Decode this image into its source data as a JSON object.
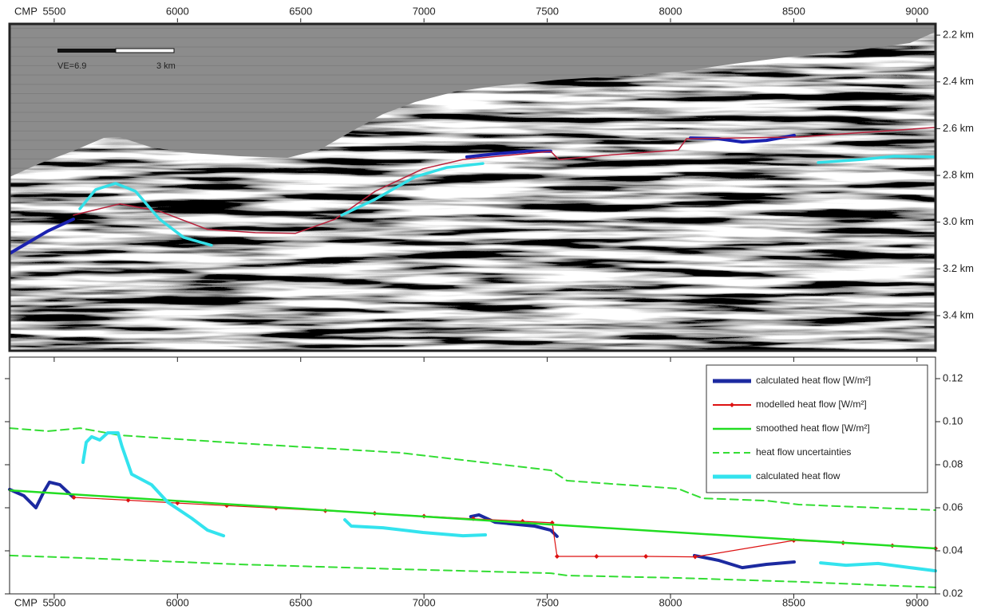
{
  "chart_data": [
    {
      "type": "line",
      "xlabel": "CMP",
      "xlim": [
        5319,
        9075
      ],
      "xticks": [
        5500,
        6000,
        6500,
        7000,
        7500,
        8000,
        8500,
        9000
      ],
      "ylim": [
        2.152,
        3.55
      ],
      "y_inverted": true,
      "yticks": [
        {
          "value": 2.2,
          "label": "2.2 km"
        },
        {
          "value": 2.4,
          "label": "2.4 km"
        },
        {
          "value": 2.6,
          "label": "2.6 km"
        },
        {
          "value": 2.8,
          "label": "2.8 km"
        },
        {
          "value": 3.0,
          "label": "3.0 km"
        },
        {
          "value": 3.2,
          "label": "3.2 km"
        },
        {
          "value": 3.4,
          "label": "3.4 km"
        }
      ],
      "scale_bar": {
        "ve": "VE=6.9",
        "length": "3 km"
      },
      "series": [
        {
          "color": "#1b22b0",
          "x": [
            5319,
            5474,
            5578,
            5900,
            7174,
            7288,
            7417,
            7514,
            7800,
            8081,
            8194,
            8291,
            8389,
            8502
          ],
          "values": [
            3.134,
            3.038,
            2.987,
            null,
            2.721,
            2.708,
            2.697,
            2.697,
            null,
            2.64,
            2.643,
            2.657,
            2.65,
            2.629
          ]
        },
        {
          "color": "#b8203a",
          "x": [
            5578,
            5766,
            5927,
            6122,
            6316,
            6478,
            6640,
            6802,
            6996,
            7158,
            7514,
            7547,
            7741,
            8032,
            8065,
            8518,
            9075
          ],
          "values": [
            2.97,
            2.922,
            2.953,
            3.031,
            3.045,
            3.048,
            2.987,
            2.868,
            2.772,
            2.732,
            2.697,
            2.732,
            2.714,
            2.691,
            2.643,
            2.636,
            2.595
          ]
        },
        {
          "color": "#33e0e8",
          "x": [
            5604,
            5668,
            5749,
            5830,
            5927,
            6025,
            6138,
            6400,
            6666,
            6802,
            6964,
            7093,
            7239,
            7900,
            8599,
            8777,
            8907,
            9075
          ],
          "values": [
            2.943,
            2.861,
            2.834,
            2.868,
            2.987,
            3.065,
            3.099,
            null,
            2.97,
            2.902,
            2.806,
            2.766,
            2.749,
            null,
            2.745,
            2.732,
            2.718,
            2.721
          ]
        }
      ]
    },
    {
      "type": "line",
      "xlabel": "CMP",
      "xlim": [
        5319,
        9075
      ],
      "xticks": [
        5500,
        6000,
        6500,
        7000,
        7500,
        8000,
        8500,
        9000
      ],
      "ylim": [
        0.02,
        0.13
      ],
      "yticks": [
        0.02,
        0.04,
        0.06,
        0.08,
        {
          "value": 0.1,
          "label": "0.10"
        },
        0.12
      ],
      "legend": "top-right",
      "series": [
        {
          "name": "calculated heat flow [W/m²]",
          "color": "#1c2aa0",
          "x": [
            5319,
            5377,
            5426,
            5458,
            5481,
            5523,
            5578,
            6500,
            7190,
            7223,
            7288,
            7449,
            7514,
            7540,
            7800,
            8097,
            8194,
            8291,
            8389,
            8502
          ],
          "values": [
            0.0685,
            0.0656,
            0.06,
            0.0674,
            0.0719,
            0.0707,
            0.0648,
            null,
            0.0559,
            0.0567,
            0.0533,
            0.0515,
            0.0496,
            0.0467,
            null,
            0.0378,
            0.0356,
            0.0322,
            0.0337,
            0.0348
          ]
        },
        {
          "name": "modelled heat flow [W/m²]",
          "color": "#dd1111",
          "marker": "diamond",
          "x": [
            5580,
            5800,
            6000,
            6200,
            6400,
            6600,
            6800,
            7000,
            7200,
            7400,
            7520,
            7540,
            7700,
            7900,
            8100,
            8500,
            8700,
            8900,
            9075
          ],
          "values": [
            0.0648,
            0.0635,
            0.0622,
            0.061,
            0.0598,
            0.0586,
            0.0574,
            0.0561,
            0.0549,
            0.0537,
            0.053,
            0.0374,
            0.0374,
            0.0374,
            0.0372,
            0.0448,
            0.0437,
            0.0424,
            0.0411
          ]
        },
        {
          "name": "smoothed heat flow [W/m²]",
          "color": "#22dd22",
          "x": [
            5319,
            7500,
            9075
          ],
          "values": [
            0.0681,
            0.0523,
            0.0411
          ]
        },
        {
          "name": "heat flow uncertainties",
          "color": "#33dd33",
          "dashed": true,
          "x": [
            5320,
            5475,
            5605,
            5765,
            6250,
            6900,
            7515,
            7580,
            8030,
            8130,
            8390,
            8520,
            9075
          ],
          "values": [
            0.097,
            0.0956,
            0.097,
            0.0937,
            0.09,
            0.0856,
            0.0774,
            0.0726,
            0.0689,
            0.0644,
            0.0633,
            0.0615,
            0.0589
          ]
        },
        {
          "color": "#33dd33",
          "dashed": true,
          "x": [
            5320,
            5605,
            6250,
            6900,
            7515,
            7580,
            8030,
            8520,
            9075
          ],
          "values": [
            0.0378,
            0.0367,
            0.0337,
            0.0315,
            0.0296,
            0.0285,
            0.0274,
            0.0256,
            0.023
          ]
        },
        {
          "name": "calculated heat flow",
          "color": "#33e3ee",
          "x": [
            5617,
            5630,
            5652,
            5685,
            5717,
            5759,
            5775,
            5814,
            5895,
            5960,
            6057,
            6122,
            6187,
            6400,
            6679,
            6705,
            6834,
            6996,
            7158,
            7249,
            7900,
            8609,
            8712,
            8842,
            8972,
            9075
          ],
          "values": [
            0.0811,
            0.0904,
            0.093,
            0.0915,
            0.0948,
            0.0948,
            0.0885,
            0.0756,
            0.0707,
            0.0626,
            0.0552,
            0.0496,
            0.047,
            null,
            0.0544,
            0.0515,
            0.0507,
            0.0485,
            0.047,
            0.0474,
            null,
            0.0344,
            0.0333,
            0.0341,
            0.0322,
            0.0307
          ]
        }
      ]
    }
  ]
}
